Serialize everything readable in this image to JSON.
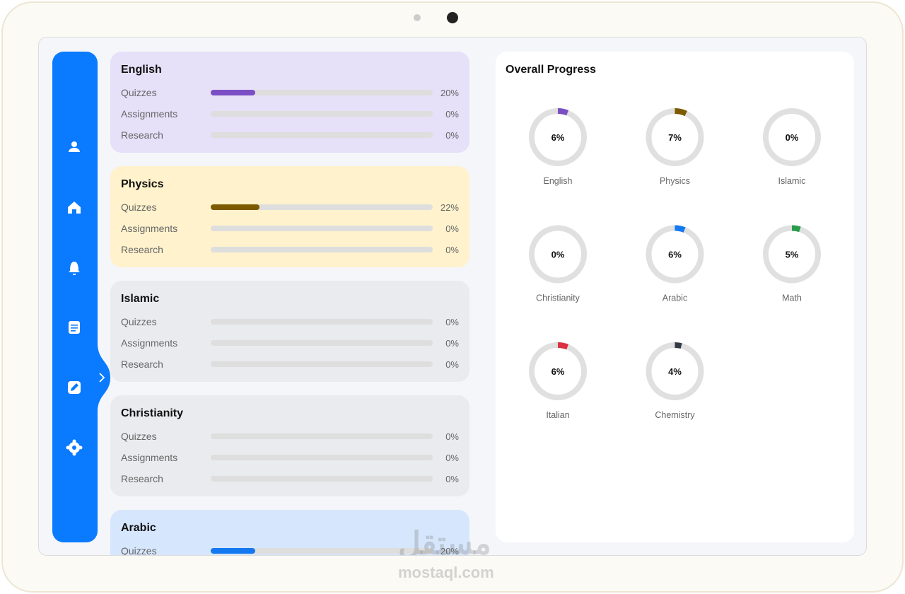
{
  "subjects": [
    {
      "name": "English",
      "color": "#7b4fc4",
      "background": "#e6e0f8",
      "rows": [
        {
          "label": "Quizzes",
          "value": {
            "value": 20,
            "label": "20%"
          }
        },
        {
          "label": "Assignments",
          "value": {
            "value": 0,
            "label": "0%"
          }
        },
        {
          "label": "Research",
          "value": {
            "value": 0,
            "label": "0%"
          }
        }
      ]
    },
    {
      "name": "Physics",
      "color": "#7d5a00",
      "background": "#fff2cc",
      "rows": [
        {
          "label": "Quizzes",
          "value": {
            "value": 22,
            "label": "22%"
          }
        },
        {
          "label": "Assignments",
          "value": {
            "value": 0,
            "label": "0%"
          }
        },
        {
          "label": "Research",
          "value": {
            "value": 0,
            "label": "0%"
          }
        }
      ]
    },
    {
      "name": "Islamic",
      "color": "#9aa0a6",
      "background": "#e9ebee",
      "rows": [
        {
          "label": "Quizzes",
          "value": {
            "value": 0,
            "label": "0%"
          }
        },
        {
          "label": "Assignments",
          "value": {
            "value": 0,
            "label": "0%"
          }
        },
        {
          "label": "Research",
          "value": {
            "value": 0,
            "label": "0%"
          }
        }
      ]
    },
    {
      "name": "Christianity",
      "color": "#9aa0a6",
      "background": "#e9ebee",
      "rows": [
        {
          "label": "Quizzes",
          "value": {
            "value": 0,
            "label": "0%"
          }
        },
        {
          "label": "Assignments",
          "value": {
            "value": 0,
            "label": "0%"
          }
        },
        {
          "label": "Research",
          "value": {
            "value": 0,
            "label": "0%"
          }
        }
      ]
    },
    {
      "name": "Arabic",
      "color": "#1479f0",
      "background": "#d6e6fc",
      "rows": [
        {
          "label": "Quizzes",
          "value": {
            "value": 20,
            "label": "20%"
          }
        }
      ]
    }
  ],
  "overall": {
    "title": "Overall Progress",
    "items": [
      {
        "name": "English",
        "color": "#7b4fc4",
        "value": {
          "value": 6,
          "label": "6%"
        }
      },
      {
        "name": "Physics",
        "color": "#7d5a00",
        "value": {
          "value": 7,
          "label": "7%"
        }
      },
      {
        "name": "Islamic",
        "color": "#9aa0a6",
        "value": {
          "value": 0,
          "label": "0%"
        }
      },
      {
        "name": "Christianity",
        "color": "#9aa0a6",
        "value": {
          "value": 0,
          "label": "0%"
        }
      },
      {
        "name": "Arabic",
        "color": "#1479f0",
        "value": {
          "value": 6,
          "label": "6%"
        }
      },
      {
        "name": "Math",
        "color": "#2a9d4b",
        "value": {
          "value": 5,
          "label": "5%"
        }
      },
      {
        "name": "Italian",
        "color": "#d93343",
        "value": {
          "value": 6,
          "label": "6%"
        }
      },
      {
        "name": "Chemistry",
        "color": "#333a44",
        "value": {
          "value": 4,
          "label": "4%"
        }
      }
    ]
  },
  "watermark": {
    "arabic": "مستقل",
    "latin": "mostaql.com"
  }
}
